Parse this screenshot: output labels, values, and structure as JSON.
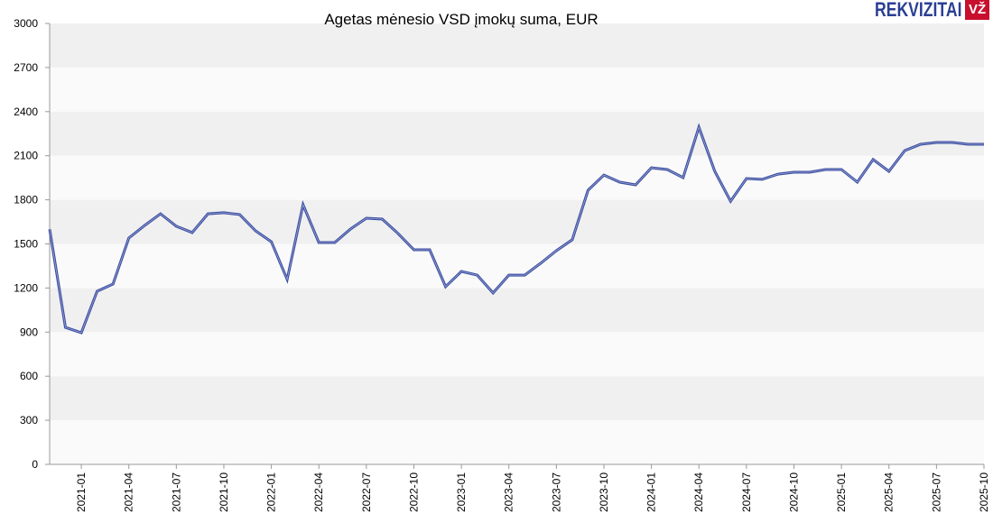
{
  "chart_data": {
    "type": "line",
    "title": "Agetas mėnesio VSD įmokų suma, EUR",
    "xlabel": "",
    "ylabel": "",
    "ylim": [
      0,
      3000
    ],
    "yticks": [
      0,
      300,
      600,
      900,
      1200,
      1500,
      1800,
      2100,
      2400,
      2700,
      3000
    ],
    "grid": "horizontal alternating bands",
    "legend": "none",
    "line_color": "#3c4ea0",
    "x_start": "2020-11",
    "xtick_labels": [
      "2021-01",
      "2021-04",
      "2021-07",
      "2021-10",
      "2022-01",
      "2022-04",
      "2022-07",
      "2022-10",
      "2023-01",
      "2023-04",
      "2023-07",
      "2023-10",
      "2024-01",
      "2024-04",
      "2024-07",
      "2024-10",
      "2025-01",
      "2025-04",
      "2025-07",
      "2025-10"
    ],
    "x": [
      "2020-11",
      "2020-12",
      "2021-01",
      "2021-02",
      "2021-03",
      "2021-04",
      "2021-05",
      "2021-06",
      "2021-07",
      "2021-08",
      "2021-09",
      "2021-10",
      "2021-11",
      "2021-12",
      "2022-01",
      "2022-02",
      "2022-03",
      "2022-04",
      "2022-05",
      "2022-06",
      "2022-07",
      "2022-08",
      "2022-09",
      "2022-10",
      "2022-11",
      "2022-12",
      "2023-01",
      "2023-02",
      "2023-03",
      "2023-04",
      "2023-05",
      "2023-06",
      "2023-07",
      "2023-08",
      "2023-09",
      "2023-10",
      "2023-11",
      "2023-12",
      "2024-01",
      "2024-02",
      "2024-03",
      "2024-04",
      "2024-05",
      "2024-06",
      "2024-07",
      "2024-08",
      "2024-09",
      "2024-10",
      "2024-11",
      "2024-12",
      "2025-01",
      "2025-02",
      "2025-03",
      "2025-04",
      "2025-05",
      "2025-06",
      "2025-07",
      "2025-08",
      "2025-09",
      "2025-10"
    ],
    "values": [
      1600,
      932,
      896,
      1178,
      1227,
      1540,
      1626,
      1705,
      1620,
      1577,
      1705,
      1712,
      1700,
      1589,
      1515,
      1258,
      1767,
      1509,
      1509,
      1601,
      1675,
      1669,
      1571,
      1460,
      1460,
      1209,
      1313,
      1288,
      1166,
      1288,
      1288,
      1368,
      1454,
      1528,
      1865,
      1969,
      1920,
      1902,
      2018,
      2006,
      1951,
      2294,
      1994,
      1791,
      1945,
      1939,
      1975,
      1988,
      1988,
      2006,
      2006,
      1920,
      2074,
      1994,
      2135,
      2178,
      2190,
      2190,
      2178,
      2178
    ]
  },
  "logo": {
    "text": "REKVIZITAI",
    "badge": "VŽ"
  }
}
